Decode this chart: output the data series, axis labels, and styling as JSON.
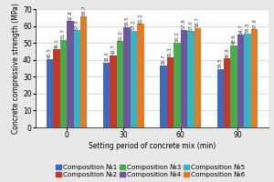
{
  "title": "",
  "xlabel": "Setting period of concrete mix (min)",
  "ylabel": "Concrete compressive strength (MPa)",
  "groups": [
    0,
    30,
    60,
    90
  ],
  "compositions": [
    "Composition №1",
    "Composition №2",
    "Composition №3",
    "Composition №4",
    "Composition №5",
    "Composition №6"
  ],
  "values": [
    [
      40.5,
      46.1,
      51.7,
      62.8,
      57.5,
      65.7
    ],
    [
      38.3,
      42.7,
      51.0,
      59.5,
      57.2,
      61.2
    ],
    [
      36.7,
      41.3,
      50.2,
      57.8,
      57.0,
      58.7
    ],
    [
      34.5,
      40.8,
      48.6,
      54.7,
      55.5,
      57.9
    ]
  ],
  "colors": [
    "#3d6bbf",
    "#c0392b",
    "#4aab4a",
    "#7055a0",
    "#3ab5bf",
    "#e07b2a"
  ],
  "ylim": [
    0,
    70
  ],
  "yticks": [
    0,
    10,
    20,
    30,
    40,
    50,
    60,
    70
  ],
  "bar_width": 0.12,
  "legend_fontsize": 5.2,
  "tick_fontsize": 5.5,
  "label_fontsize": 5.5,
  "value_fontsize": 3.8,
  "background_color": "#e8e8e8"
}
